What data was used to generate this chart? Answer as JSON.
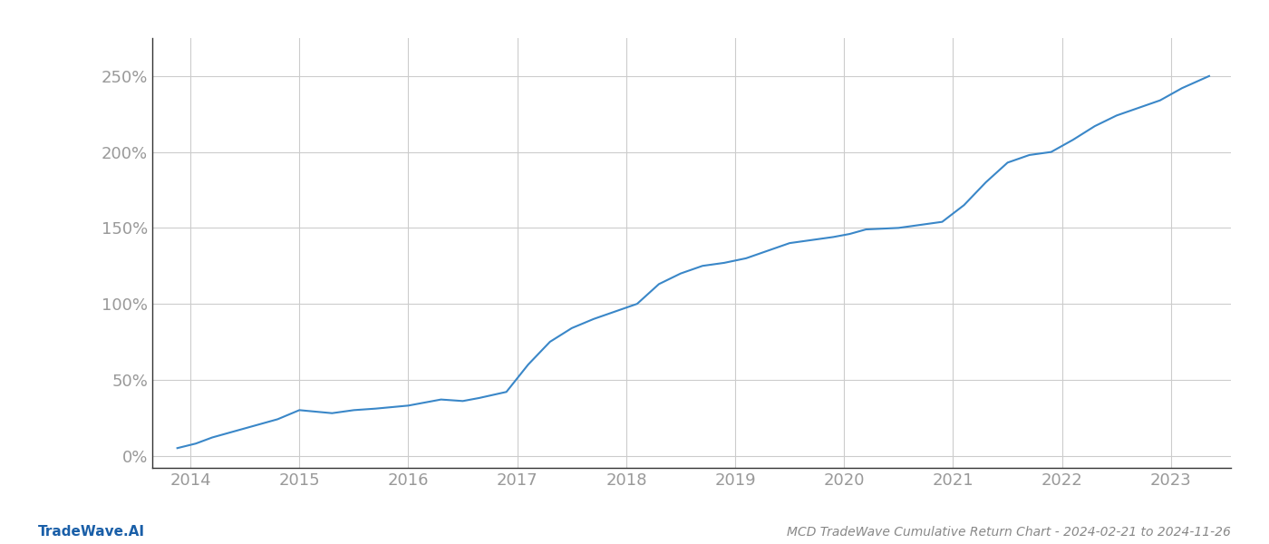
{
  "title": "MCD TradeWave Cumulative Return Chart - 2024-02-21 to 2024-11-26",
  "watermark": "TradeWave.AI",
  "line_color": "#3a87c8",
  "background_color": "#ffffff",
  "grid_color": "#cccccc",
  "x_years": [
    2014,
    2015,
    2016,
    2017,
    2018,
    2019,
    2020,
    2021,
    2022,
    2023
  ],
  "x_data": [
    2013.88,
    2014.05,
    2014.2,
    2014.4,
    2014.6,
    2014.8,
    2015.0,
    2015.15,
    2015.3,
    2015.5,
    2015.7,
    2015.85,
    2016.0,
    2016.15,
    2016.3,
    2016.5,
    2016.65,
    2016.9,
    2017.1,
    2017.3,
    2017.5,
    2017.7,
    2017.9,
    2018.1,
    2018.3,
    2018.5,
    2018.7,
    2018.9,
    2019.1,
    2019.3,
    2019.5,
    2019.7,
    2019.9,
    2020.05,
    2020.2,
    2020.5,
    2020.7,
    2020.9,
    2021.1,
    2021.3,
    2021.5,
    2021.7,
    2021.9,
    2022.1,
    2022.3,
    2022.5,
    2022.7,
    2022.9,
    2023.1,
    2023.35
  ],
  "y_data": [
    5,
    8,
    12,
    16,
    20,
    24,
    30,
    29,
    28,
    30,
    31,
    32,
    33,
    35,
    37,
    36,
    38,
    42,
    60,
    75,
    84,
    90,
    95,
    100,
    113,
    120,
    125,
    127,
    130,
    135,
    140,
    142,
    144,
    146,
    149,
    150,
    152,
    154,
    165,
    180,
    193,
    198,
    200,
    208,
    217,
    224,
    229,
    234,
    242,
    250
  ],
  "yticks": [
    0,
    50,
    100,
    150,
    200,
    250
  ],
  "ylim": [
    -8,
    275
  ],
  "xlim": [
    2013.65,
    2023.55
  ],
  "title_fontsize": 10,
  "watermark_fontsize": 11,
  "tick_fontsize": 13,
  "title_color": "#888888",
  "tick_color": "#999999",
  "watermark_color": "#1a5fa8",
  "spine_color": "#333333"
}
